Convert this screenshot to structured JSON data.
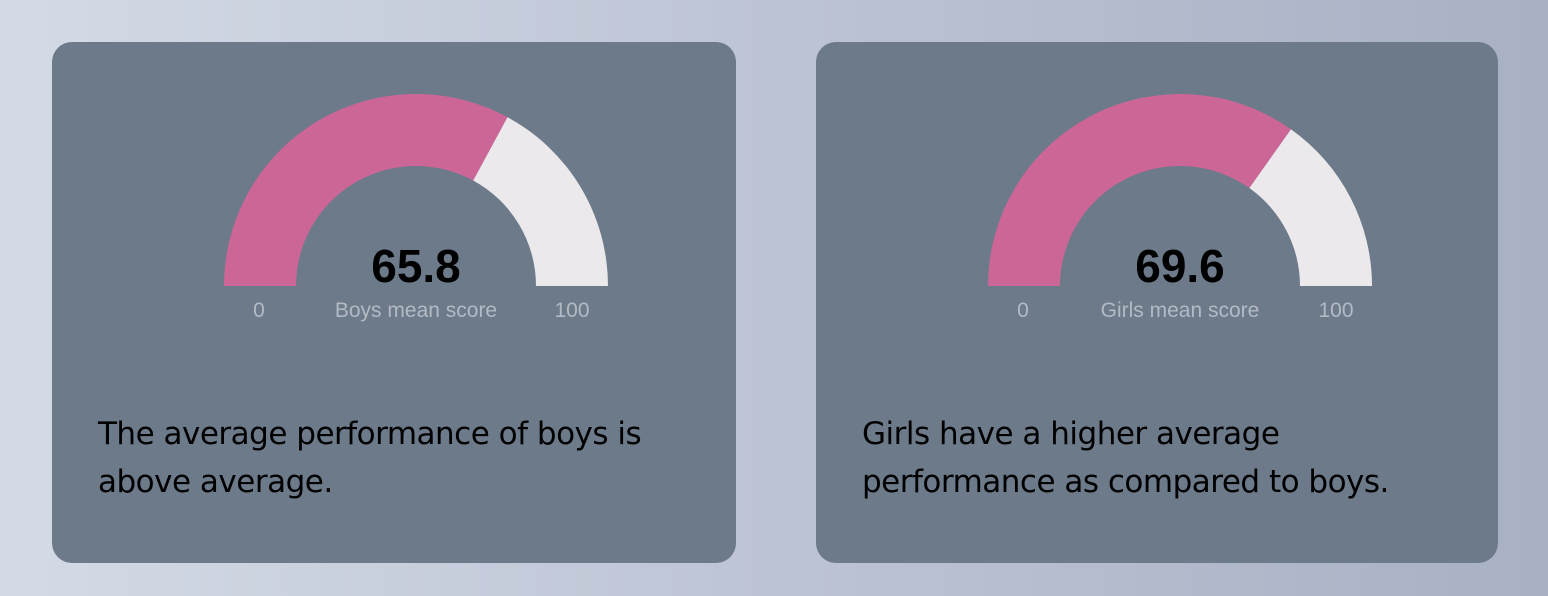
{
  "colors": {
    "fill": "#cb6697",
    "track": "#ece9ec",
    "card": "#6c7a8a",
    "label": "#b3bac4"
  },
  "chart_data": [
    {
      "type": "gauge",
      "value": 65.8,
      "value_label": "65.8",
      "min": 0,
      "max": 100,
      "min_label": "0",
      "max_label": "100",
      "title": "Boys mean score",
      "insight": "The average performance of boys is above average."
    },
    {
      "type": "gauge",
      "value": 69.6,
      "value_label": "69.6",
      "min": 0,
      "max": 100,
      "min_label": "0",
      "max_label": "100",
      "title": "Girls mean score",
      "insight": "Girls have a higher average performance as compared to boys."
    }
  ]
}
